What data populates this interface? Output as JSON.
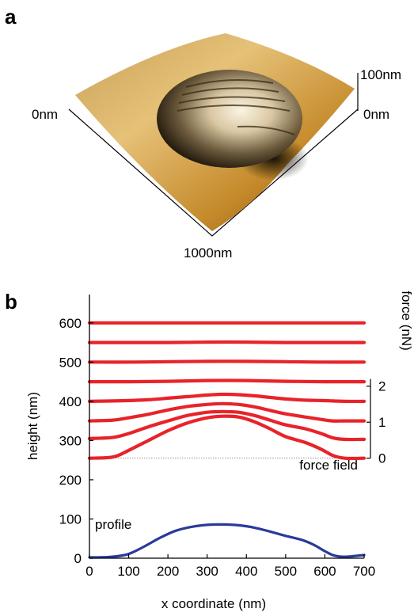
{
  "panel_a": {
    "letter": "a",
    "labels": {
      "left": "0nm",
      "right_top": "100nm",
      "right_bottom": "0nm",
      "bottom": "1000nm"
    },
    "colors": {
      "surface_light": "#e8c27a",
      "surface_mid": "#c98d2c",
      "surface_dark": "#5a3a10",
      "shadow": "#1a1206"
    }
  },
  "panel_b": {
    "letter": "b",
    "xlabel": "x coordinate (nm)",
    "ylabel": "height (nm)",
    "right_label": "force (nN)",
    "x_ticks": [
      "0",
      "100",
      "200",
      "300",
      "400",
      "500",
      "600",
      "700"
    ],
    "y_ticks": [
      "0",
      "100",
      "200",
      "300",
      "400",
      "500",
      "600"
    ],
    "force_ticks": [
      "0",
      "1",
      "2"
    ],
    "force_field_label": "force field",
    "profile_label": "profile",
    "colors": {
      "force": "#e8232a",
      "profile": "#2a3a9c"
    }
  },
  "chart_data": {
    "type": "line",
    "xlim": [
      0,
      700
    ],
    "ylim": [
      0,
      640
    ],
    "xlabel": "x coordinate (nm)",
    "ylabel": "height (nm)",
    "secondary_axis": {
      "label": "force (nN)",
      "ticks": [
        0,
        1,
        2
      ],
      "range_height_nm": [
        255,
        457
      ]
    },
    "grid": false,
    "series": [
      {
        "name": "profile",
        "color": "#2a3a9c",
        "x": [
          0,
          50,
          90,
          110,
          140,
          180,
          220,
          260,
          300,
          340,
          380,
          420,
          460,
          500,
          540,
          570,
          600,
          620,
          640,
          660,
          680,
          700
        ],
        "y": [
          2,
          3,
          8,
          15,
          30,
          52,
          70,
          80,
          85,
          86,
          84,
          78,
          68,
          57,
          47,
          35,
          18,
          8,
          4,
          4,
          6,
          8
        ]
      },
      {
        "name": "force field",
        "color": "#e8232a",
        "curves": [
          {
            "x": [
              0,
              60,
              100,
              150,
              200,
              250,
              300,
              340,
              380,
              420,
              460,
              500,
              550,
              590,
              620,
              650,
              700
            ],
            "y": [
              255,
              258,
              275,
              300,
              325,
              345,
              358,
              362,
              360,
              348,
              330,
              310,
              295,
              278,
              262,
              255,
              255
            ]
          },
          {
            "x": [
              0,
              60,
              100,
              150,
              200,
              250,
              300,
              340,
              380,
              420,
              460,
              500,
              550,
              590,
              620,
              650,
              700
            ],
            "y": [
              305,
              308,
              318,
              335,
              350,
              364,
              372,
              374,
              372,
              364,
              352,
              340,
              330,
              318,
              307,
              303,
              303
            ]
          },
          {
            "x": [
              0,
              60,
              100,
              150,
              200,
              250,
              300,
              340,
              380,
              420,
              460,
              500,
              550,
              590,
              620,
              650,
              700
            ],
            "y": [
              350,
              352,
              358,
              367,
              378,
              387,
              392,
              394,
              392,
              386,
              377,
              368,
              360,
              354,
              350,
              350,
              350
            ]
          },
          {
            "x": [
              0,
              60,
              100,
              150,
              200,
              250,
              300,
              340,
              380,
              420,
              460,
              500,
              550,
              590,
              620,
              650,
              700
            ],
            "y": [
              400,
              401,
              402,
              404,
              408,
              412,
              416,
              418,
              417,
              414,
              410,
              406,
              403,
              402,
              401,
              400,
              400
            ]
          },
          {
            "x": [
              0,
              100,
              200,
              300,
              400,
              500,
              600,
              700
            ],
            "y": [
              450,
              450,
              451,
              453,
              453,
              451,
              450,
              450
            ]
          },
          {
            "x": [
              0,
              100,
              200,
              300,
              400,
              500,
              600,
              700
            ],
            "y": [
              500,
              500,
              501,
              502,
              502,
              501,
              500,
              500
            ]
          },
          {
            "x": [
              0,
              100,
              200,
              300,
              400,
              500,
              600,
              700
            ],
            "y": [
              550,
              550,
              550,
              551,
              551,
              550,
              550,
              550
            ]
          },
          {
            "x": [
              0,
              100,
              200,
              300,
              400,
              500,
              600,
              700
            ],
            "y": [
              600,
              600,
              600,
              600,
              600,
              600,
              600,
              600
            ]
          }
        ]
      }
    ]
  }
}
